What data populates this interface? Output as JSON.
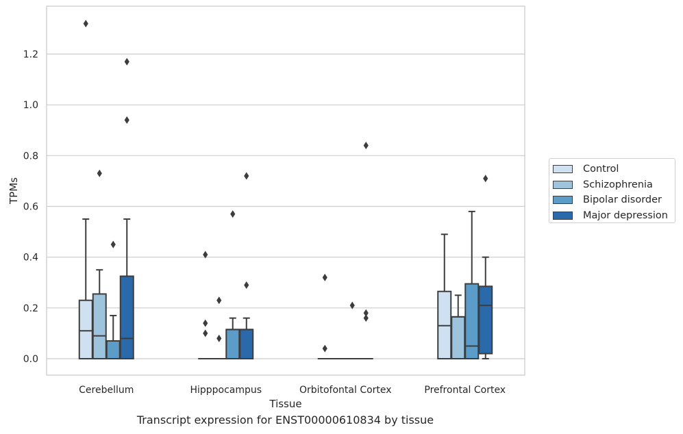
{
  "chart_data": {
    "type": "box",
    "caption": "Transcript expression for ENST00000610834 by tissue",
    "xlabel": "Tissue",
    "ylabel": "TPMs",
    "ylim": [
      -0.065,
      1.39
    ],
    "yticks": [
      "0.0",
      "0.2",
      "0.4",
      "0.6",
      "0.8",
      "1.0",
      "1.2"
    ],
    "ytick_values": [
      0.0,
      0.2,
      0.4,
      0.6,
      0.8,
      1.0,
      1.2
    ],
    "grid": "horizontal",
    "legend_position": "right",
    "categories": [
      "Cerebellum",
      "Hipppocampus",
      "Orbitofontal Cortex",
      "Prefrontal Cortex"
    ],
    "series": [
      {
        "name": "Control",
        "color": "#cfe1f0",
        "boxes": [
          {
            "q1": 0.0,
            "median": 0.11,
            "q3": 0.23,
            "whisker_low": 0.0,
            "whisker_high": 0.55,
            "outliers": [
              1.32
            ]
          },
          {
            "q1": 0.0,
            "median": 0.0,
            "q3": 0.0,
            "whisker_low": 0.0,
            "whisker_high": 0.0,
            "outliers": [
              0.41,
              0.14,
              0.1
            ]
          },
          {
            "q1": 0.0,
            "median": 0.0,
            "q3": 0.0,
            "whisker_low": 0.0,
            "whisker_high": 0.0,
            "outliers": [
              0.32,
              0.04
            ]
          },
          {
            "q1": 0.0,
            "median": 0.13,
            "q3": 0.265,
            "whisker_low": 0.0,
            "whisker_high": 0.49,
            "outliers": []
          }
        ]
      },
      {
        "name": "Schizophrenia",
        "color": "#9dc3dd",
        "boxes": [
          {
            "q1": 0.0,
            "median": 0.09,
            "q3": 0.255,
            "whisker_low": 0.0,
            "whisker_high": 0.35,
            "outliers": [
              0.73
            ]
          },
          {
            "q1": 0.0,
            "median": 0.0,
            "q3": 0.0,
            "whisker_low": 0.0,
            "whisker_high": 0.0,
            "outliers": [
              0.23,
              0.08
            ]
          },
          {
            "q1": 0.0,
            "median": 0.0,
            "q3": 0.0,
            "whisker_low": 0.0,
            "whisker_high": 0.0,
            "outliers": []
          },
          {
            "q1": 0.0,
            "median": 0.165,
            "q3": 0.165,
            "whisker_low": 0.0,
            "whisker_high": 0.25,
            "outliers": []
          }
        ]
      },
      {
        "name": "Bipolar disorder",
        "color": "#5b9cc8",
        "boxes": [
          {
            "q1": 0.0,
            "median": 0.07,
            "q3": 0.07,
            "whisker_low": 0.0,
            "whisker_high": 0.17,
            "outliers": [
              0.45
            ]
          },
          {
            "q1": 0.0,
            "median": 0.115,
            "q3": 0.115,
            "whisker_low": 0.0,
            "whisker_high": 0.16,
            "outliers": [
              0.57
            ]
          },
          {
            "q1": 0.0,
            "median": 0.0,
            "q3": 0.0,
            "whisker_low": 0.0,
            "whisker_high": 0.0,
            "outliers": [
              0.21
            ]
          },
          {
            "q1": 0.0,
            "median": 0.05,
            "q3": 0.295,
            "whisker_low": 0.0,
            "whisker_high": 0.58,
            "outliers": []
          }
        ]
      },
      {
        "name": "Major depression",
        "color": "#2a6aab",
        "boxes": [
          {
            "q1": 0.0,
            "median": 0.08,
            "q3": 0.325,
            "whisker_low": 0.0,
            "whisker_high": 0.55,
            "outliers": [
              1.17,
              0.94
            ]
          },
          {
            "q1": 0.0,
            "median": 0.115,
            "q3": 0.115,
            "whisker_low": 0.0,
            "whisker_high": 0.16,
            "outliers": [
              0.72,
              0.29
            ]
          },
          {
            "q1": 0.0,
            "median": 0.0,
            "q3": 0.0,
            "whisker_low": 0.0,
            "whisker_high": 0.0,
            "outliers": [
              0.84,
              0.18,
              0.16
            ]
          },
          {
            "q1": 0.02,
            "median": 0.21,
            "q3": 0.285,
            "whisker_low": 0.0,
            "whisker_high": 0.4,
            "outliers": [
              0.71
            ]
          }
        ]
      }
    ]
  }
}
